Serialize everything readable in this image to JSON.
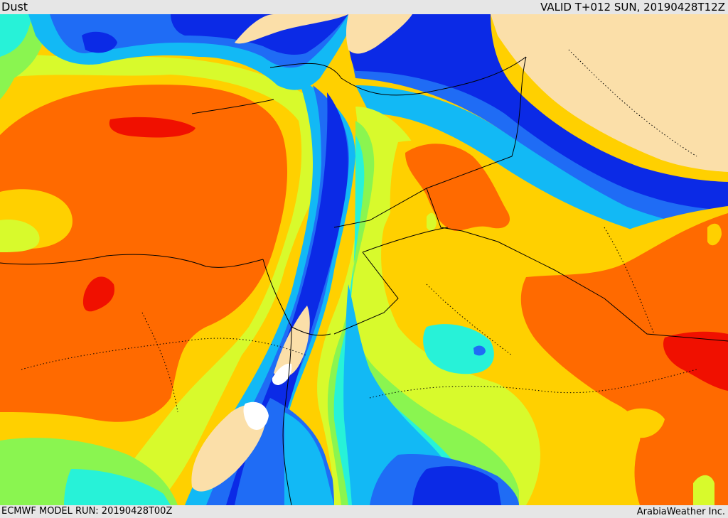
{
  "header": {
    "field_name": "Dust",
    "valid_time": "VALID T+012 SUN, 20190428T12Z"
  },
  "footer": {
    "model_run": "ECMWF MODEL RUN: 20190428T00Z",
    "credit": "ArabiaWeather Inc."
  },
  "palette": {
    "land_no_dust": "#fbdfa9",
    "deep_blue": "#0b2ae6",
    "blue": "#1f6cf5",
    "light_blue": "#12b9f5",
    "cyan": "#27f2d8",
    "light_green": "#8af550",
    "yellow_green": "#d8fa2c",
    "yellow": "#ffd000",
    "orange": "#ffa400",
    "dark_orange": "#ff6a00",
    "red": "#f01000"
  }
}
